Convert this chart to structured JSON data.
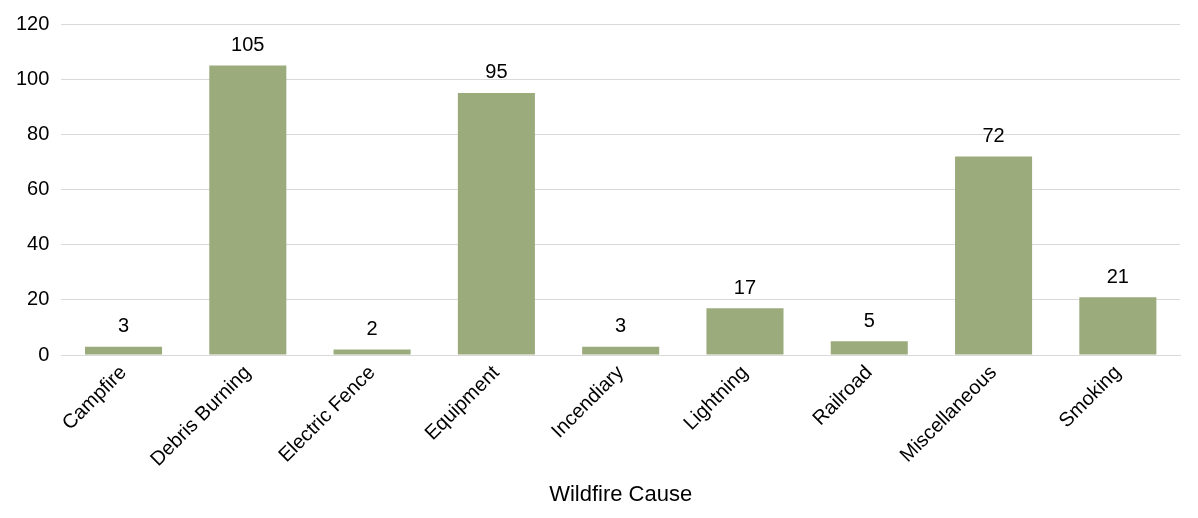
{
  "chart_data": {
    "type": "bar",
    "xlabel": "Wildfire Cause",
    "categories": [
      "Campfire",
      "Debris Burning",
      "Electric Fence",
      "Equipment",
      "Incendiary",
      "Lightning",
      "Railroad",
      "Miscellaneous",
      "Smoking"
    ],
    "values": [
      3,
      105,
      2,
      95,
      3,
      17,
      5,
      72,
      21
    ],
    "color": "#9bab7c",
    "ylim": [
      0,
      120
    ],
    "yticks": [
      0,
      20,
      40,
      60,
      80,
      100,
      120
    ],
    "grid": "y",
    "data_labels": true,
    "legend": false
  }
}
